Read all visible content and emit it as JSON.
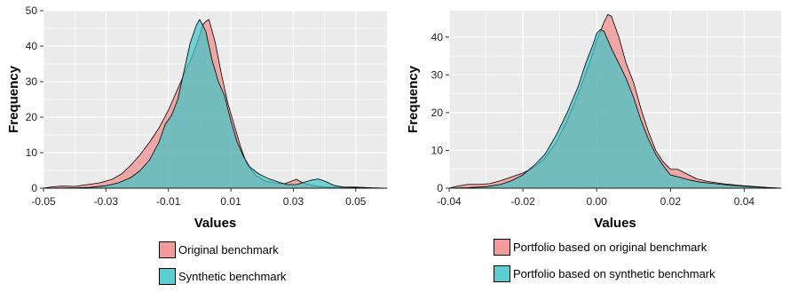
{
  "colors": {
    "panel_bg": "#ebebeb",
    "grid": "#ffffff",
    "series_original": "#f08a88",
    "series_synthetic": "#3fc4c9"
  },
  "chart_data": [
    {
      "type": "area",
      "title": "",
      "xlabel": "Values",
      "ylabel": "Frequency",
      "xlim": [
        -0.05,
        0.06
      ],
      "ylim": [
        0,
        50
      ],
      "x_ticks": [
        -0.05,
        -0.03,
        -0.01,
        0.01,
        0.03,
        0.05
      ],
      "x_tick_labels": [
        "-0.05",
        "-0.03",
        "-0.01",
        "0.01",
        "0.03",
        "0.05"
      ],
      "y_ticks": [
        0,
        10,
        20,
        30,
        40,
        50
      ],
      "y_tick_labels": [
        "0",
        "10",
        "20",
        "30",
        "40",
        "50"
      ],
      "grid": true,
      "legend_position": "bottom",
      "series": [
        {
          "name": "Original benchmark",
          "color": "#f08a88",
          "x": [
            -0.05,
            -0.047,
            -0.044,
            -0.04,
            -0.036,
            -0.032,
            -0.028,
            -0.025,
            -0.022,
            -0.019,
            -0.016,
            -0.013,
            -0.01,
            -0.008,
            -0.006,
            -0.004,
            -0.002,
            0,
            0.001,
            0.002,
            0.003,
            0.005,
            0.007,
            0.009,
            0.011,
            0.013,
            0.015,
            0.018,
            0.021,
            0.024,
            0.027,
            0.029,
            0.031,
            0.033,
            0.036,
            0.039,
            0.042,
            0.046,
            0.05,
            0.055,
            0.06
          ],
          "y": [
            0,
            0.4,
            0.6,
            0.5,
            1,
            1.5,
            2.5,
            4,
            6.5,
            9.5,
            13,
            17,
            22,
            26,
            30,
            34,
            38,
            43,
            46,
            47,
            47.5,
            41,
            32,
            24,
            18,
            12,
            7,
            3.5,
            2,
            1.5,
            1.2,
            1.8,
            2.5,
            1.5,
            0.8,
            0.4,
            0.2,
            0.3,
            0.3,
            0.1,
            0
          ]
        },
        {
          "name": "Synthetic benchmark",
          "color": "#3fc4c9",
          "x": [
            -0.05,
            -0.04,
            -0.035,
            -0.03,
            -0.026,
            -0.022,
            -0.019,
            -0.016,
            -0.013,
            -0.011,
            -0.009,
            -0.007,
            -0.005,
            -0.003,
            -0.001,
            0,
            0.001,
            0.002,
            0.004,
            0.006,
            0.008,
            0.01,
            0.012,
            0.014,
            0.016,
            0.019,
            0.022,
            0.025,
            0.028,
            0.031,
            0.034,
            0.036,
            0.038,
            0.04,
            0.043,
            0.046,
            0.05,
            0.055,
            0.06
          ],
          "y": [
            0,
            0.1,
            0.2,
            0.7,
            1.5,
            3,
            5,
            8,
            13,
            18,
            20.5,
            25,
            33,
            41,
            46,
            47.5,
            46,
            44,
            36,
            30,
            26,
            19,
            13,
            9,
            6,
            4,
            2.7,
            1.8,
            1,
            1,
            1.8,
            2.3,
            2.6,
            2,
            0.8,
            0.3,
            0.2,
            0.1,
            0
          ]
        }
      ]
    },
    {
      "type": "area",
      "title": "",
      "xlabel": "Values",
      "ylabel": "Frequency",
      "xlim": [
        -0.04,
        0.05
      ],
      "ylim": [
        0,
        47
      ],
      "x_ticks": [
        -0.04,
        -0.02,
        0.0,
        0.02,
        0.04
      ],
      "x_tick_labels": [
        "-0.04",
        "-0.02",
        "0.00",
        "0.02",
        "0.04"
      ],
      "y_ticks": [
        0,
        10,
        20,
        30,
        40
      ],
      "y_tick_labels": [
        "0",
        "10",
        "20",
        "30",
        "40"
      ],
      "grid": true,
      "legend_position": "bottom",
      "series": [
        {
          "name": "Portfolio based on original benchmark",
          "color": "#f08a88",
          "x": [
            -0.04,
            -0.038,
            -0.035,
            -0.032,
            -0.029,
            -0.026,
            -0.023,
            -0.02,
            -0.017,
            -0.014,
            -0.011,
            -0.008,
            -0.005,
            -0.002,
            0,
            0.002,
            0.003,
            0.004,
            0.006,
            0.008,
            0.01,
            0.012,
            0.014,
            0.016,
            0.018,
            0.02,
            0.022,
            0.024,
            0.027,
            0.03,
            0.034,
            0.038,
            0.042,
            0.046,
            0.05
          ],
          "y": [
            0,
            0.5,
            1,
            1,
            1.2,
            2,
            3,
            4,
            5.5,
            8,
            12,
            18,
            25,
            33,
            39,
            44,
            46,
            45.5,
            40,
            33,
            28,
            21,
            15,
            10,
            7,
            5,
            5,
            4,
            2.5,
            1.8,
            1.2,
            0.8,
            0.5,
            0.2,
            0
          ]
        },
        {
          "name": "Portfolio based on synthetic benchmark",
          "color": "#3fc4c9",
          "x": [
            -0.04,
            -0.035,
            -0.03,
            -0.026,
            -0.023,
            -0.02,
            -0.017,
            -0.014,
            -0.011,
            -0.008,
            -0.005,
            -0.003,
            -0.001,
            0,
            0.001,
            0.002,
            0.004,
            0.006,
            0.008,
            0.01,
            0.012,
            0.014,
            0.016,
            0.018,
            0.02,
            0.022,
            0.025,
            0.028,
            0.032,
            0.036,
            0.04,
            0.045,
            0.05
          ],
          "y": [
            0,
            0.1,
            0.4,
            1,
            2,
            3.5,
            6,
            9,
            14,
            20,
            27,
            33,
            38,
            41,
            42,
            41.5,
            37,
            33,
            29,
            24,
            18,
            13,
            9,
            6,
            3.5,
            3,
            2.2,
            1.6,
            1.2,
            0.8,
            0.5,
            0.2,
            0
          ]
        }
      ]
    }
  ]
}
